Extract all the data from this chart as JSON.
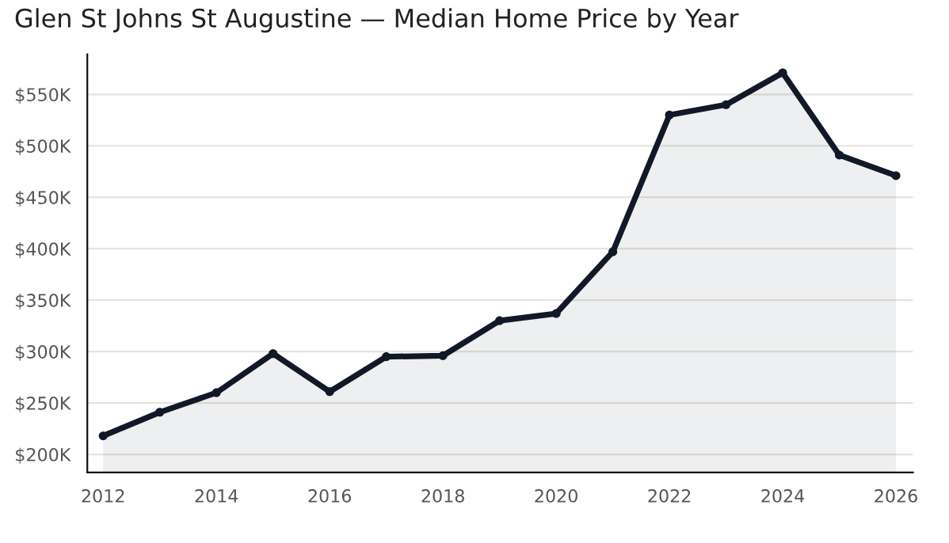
{
  "chart_data": {
    "type": "area",
    "title": "Glen St Johns St Augustine — Median Home Price by Year",
    "x": [
      2012,
      2013,
      2014,
      2015,
      2016,
      2017,
      2018,
      2019,
      2020,
      2021,
      2022,
      2023,
      2024,
      2025,
      2026
    ],
    "series": [
      {
        "color": "#111827",
        "values": [
          218000,
          241000,
          260000,
          298000,
          261000,
          295000,
          296000,
          330000,
          337000,
          397000,
          530000,
          540000,
          571000,
          491000,
          471000
        ]
      }
    ],
    "xlim": [
      2011.72,
      2026.3
    ],
    "xticks": [
      2012,
      2014,
      2016,
      2018,
      2020,
      2022,
      2024,
      2026
    ],
    "ylim": [
      182500,
      589000
    ],
    "yticks": [
      {
        "value": 200000,
        "label": "$200K"
      },
      {
        "value": 250000,
        "label": "$250K"
      },
      {
        "value": 300000,
        "label": "$300K"
      },
      {
        "value": 350000,
        "label": "$350K"
      },
      {
        "value": 400000,
        "label": "$400K"
      },
      {
        "value": 450000,
        "label": "$450K"
      },
      {
        "value": 500000,
        "label": "$500K"
      },
      {
        "value": 550000,
        "label": "$550K"
      }
    ],
    "grid": "y",
    "marker": "circle",
    "line_style": "solid",
    "legend": false
  }
}
